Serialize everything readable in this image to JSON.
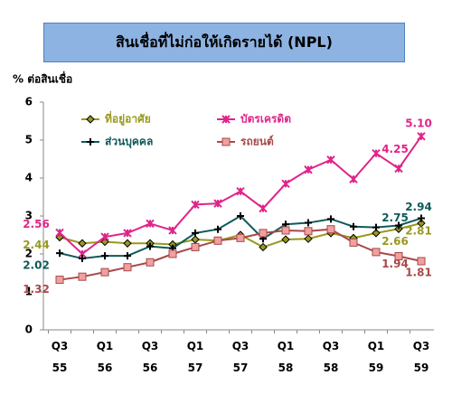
{
  "chart_data": {
    "type": "line",
    "title": "สินเชื่อที่ไม่ก่อให้เกิดรายได้ (NPL)",
    "y_label": "% ต่อสินเชื่อ",
    "categories": [
      "Q3\n55",
      null,
      "Q1\n56",
      null,
      "Q3\n56",
      null,
      "Q1\n57",
      null,
      "Q3\n57",
      null,
      "Q1\n58",
      null,
      "Q3\n58",
      null,
      "Q1\n59",
      null,
      "Q3\n59"
    ],
    "series": [
      {
        "name": "ที่อยู่อาศัย",
        "color": "#99991f",
        "marker": "diamond",
        "values": [
          2.44,
          2.28,
          2.32,
          2.28,
          2.28,
          2.25,
          2.38,
          2.35,
          2.5,
          2.18,
          2.38,
          2.4,
          2.55,
          2.42,
          2.55,
          2.66,
          2.81
        ],
        "value_labels": [
          "2.44",
          null,
          null,
          null,
          null,
          null,
          null,
          null,
          null,
          null,
          null,
          null,
          null,
          null,
          null,
          "2.66",
          "2.81"
        ]
      },
      {
        "name": "บัตรเครดิต",
        "color": "#e0248a",
        "marker": "x",
        "values": [
          2.56,
          2.0,
          2.45,
          2.55,
          2.8,
          2.62,
          3.3,
          3.33,
          3.65,
          3.2,
          3.85,
          4.22,
          4.48,
          3.97,
          4.65,
          4.25,
          5.1
        ],
        "value_labels": [
          "2.56",
          null,
          null,
          null,
          null,
          null,
          null,
          null,
          null,
          null,
          null,
          null,
          null,
          null,
          null,
          "4.25",
          "5.10"
        ]
      },
      {
        "name": "ส่วนบุคคล",
        "color": "#0f5a5a",
        "marker": "plus",
        "values": [
          2.02,
          1.88,
          1.95,
          1.95,
          2.2,
          2.15,
          2.55,
          2.65,
          3.0,
          2.4,
          2.78,
          2.82,
          2.92,
          2.72,
          2.7,
          2.75,
          2.94
        ],
        "value_labels": [
          "2.02",
          null,
          null,
          null,
          null,
          null,
          null,
          null,
          null,
          null,
          null,
          null,
          null,
          null,
          null,
          "2.75",
          "2.94"
        ]
      },
      {
        "name": "รถยนต์",
        "color": "#a8484a",
        "marker": "square",
        "values": [
          1.32,
          1.4,
          1.52,
          1.65,
          1.78,
          2.0,
          2.18,
          2.35,
          2.42,
          2.55,
          2.62,
          2.6,
          2.65,
          2.3,
          2.05,
          1.94,
          1.81
        ],
        "value_labels": [
          "1.32",
          null,
          null,
          null,
          null,
          null,
          null,
          null,
          null,
          null,
          null,
          null,
          null,
          null,
          null,
          "1.94",
          "1.81"
        ]
      }
    ],
    "ylim": [
      0,
      6
    ],
    "yticks": [
      0,
      1,
      2,
      3,
      4,
      5,
      6
    ],
    "grid": false
  }
}
